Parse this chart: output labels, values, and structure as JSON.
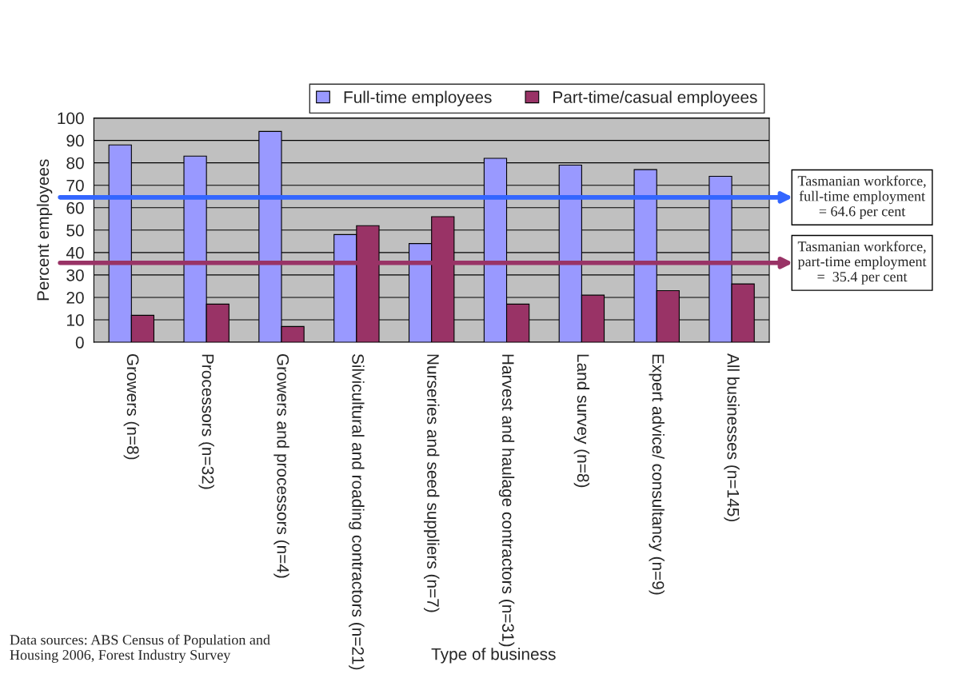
{
  "chart_data": {
    "type": "bar",
    "xlabel": "Type of business",
    "ylabel": "Percent employees",
    "categories": [
      "Growers (n=8)",
      "Processors (n=32)",
      "Growers and processors (n=4)",
      "Silvicultural and roading contractors (n=21)",
      "Nurseries and seed suppliers (n=7)",
      "Harvest and haulage contractors (n=31)",
      "Land survey (n=8)",
      "Expert advice/ consultancy (n=9)",
      "All businesses (n=145)"
    ],
    "series": [
      {
        "name": "Full-time employees",
        "color": "#9999ff",
        "values": [
          88,
          83,
          94,
          48,
          44,
          82,
          79,
          77,
          74
        ]
      },
      {
        "name": "Part-time/casual employees",
        "color": "#993366",
        "values": [
          12,
          17,
          7,
          52,
          56,
          17,
          21,
          23,
          26
        ]
      }
    ],
    "ylim": [
      0,
      100
    ],
    "yticks": [
      0,
      10,
      20,
      30,
      40,
      50,
      60,
      70,
      80,
      90,
      100
    ],
    "grid": "y",
    "legend": "top right",
    "ref_lines": [
      {
        "axis": "y",
        "value": 64.6,
        "label": "Tasmanian workforce, full-time employment = 64.6 per cent",
        "color": "#3366ff"
      },
      {
        "axis": "y",
        "value": 35.4,
        "label": "Tasmanian workforce, part-time employment =  35.4 per cent",
        "color": "#993366"
      }
    ],
    "annotations": [
      "Data sources: ABS Census of Population and Housing 2006, Forest Industry Survey"
    ]
  }
}
